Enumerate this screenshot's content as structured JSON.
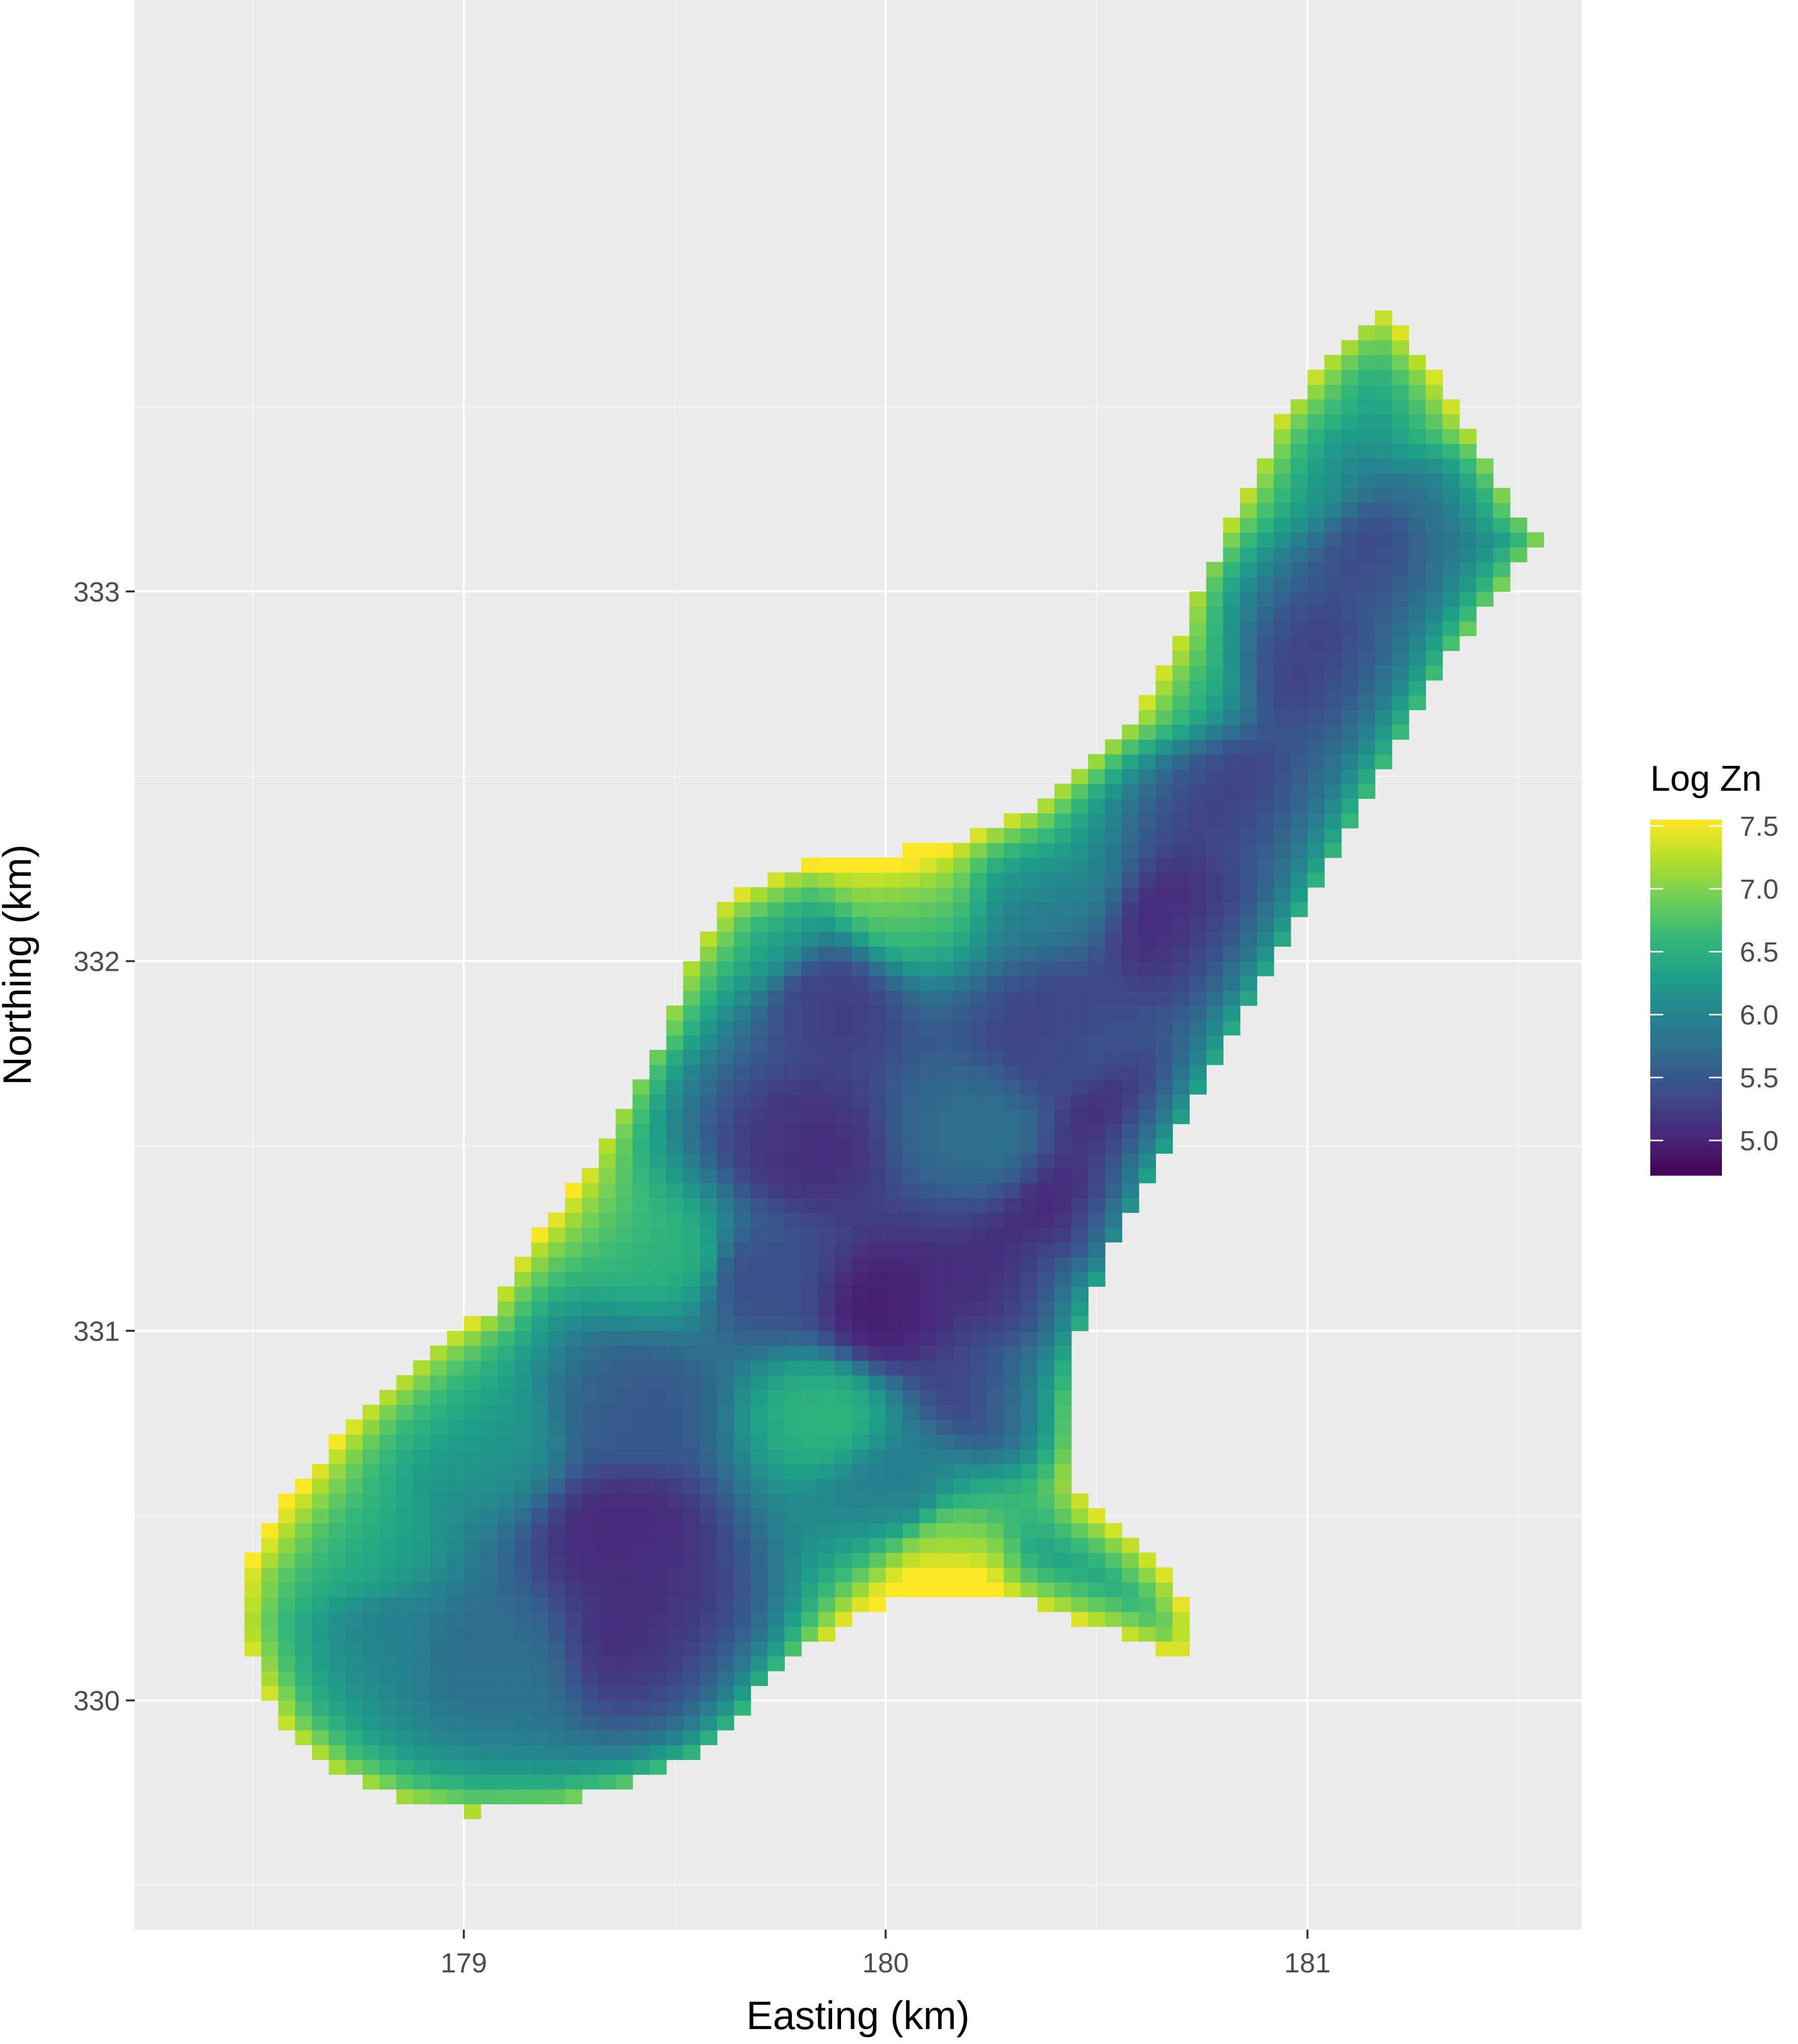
{
  "chart_data": {
    "type": "heatmap",
    "title": "",
    "xlabel": "Easting (km)",
    "ylabel": "Northing (km)",
    "xlim": [
      178.22,
      181.65
    ],
    "ylim": [
      329.38,
      334.6
    ],
    "x_ticks": [
      {
        "value": 179,
        "label": "179"
      },
      {
        "value": 180,
        "label": "180"
      },
      {
        "value": 181,
        "label": "181"
      }
    ],
    "y_ticks": [
      {
        "value": 330,
        "label": "330"
      },
      {
        "value": 331,
        "label": "331"
      },
      {
        "value": 332,
        "label": "332"
      },
      {
        "value": 333,
        "label": "333"
      }
    ],
    "minor_x": [
      178.5,
      179.5,
      180.5,
      181.5
    ],
    "minor_y": [
      329.5,
      330.5,
      331.5,
      332.5,
      333.5
    ],
    "grid": true,
    "grid_cell_km": 0.04,
    "legend": {
      "title": "Log Zn",
      "position": "right",
      "range": [
        4.72,
        7.55
      ],
      "ticks": [
        {
          "value": 5.0,
          "label": "5.0"
        },
        {
          "value": 5.5,
          "label": "5.5"
        },
        {
          "value": 6.0,
          "label": "6.0"
        },
        {
          "value": 6.5,
          "label": "6.5"
        },
        {
          "value": 7.0,
          "label": "7.0"
        },
        {
          "value": 7.5,
          "label": "7.5"
        }
      ]
    },
    "colorscale": "viridis",
    "colors": {
      "panel": "#ebebeb",
      "grid_major": "#ffffff",
      "grid_minor": "#f5f5f5",
      "viridis": [
        "#440154",
        "#482878",
        "#3e4989",
        "#31688e",
        "#26828e",
        "#1f9e89",
        "#35b779",
        "#6ece58",
        "#b5de2b",
        "#fde725"
      ]
    },
    "region_outline": [
      [
        181.18,
        333.76
      ],
      [
        181.3,
        333.6
      ],
      [
        181.4,
        333.4
      ],
      [
        181.48,
        333.22
      ],
      [
        181.55,
        333.15
      ],
      [
        181.45,
        333.0
      ],
      [
        181.35,
        332.85
      ],
      [
        181.25,
        332.65
      ],
      [
        181.15,
        332.45
      ],
      [
        181.05,
        332.25
      ],
      [
        180.95,
        332.05
      ],
      [
        180.85,
        331.85
      ],
      [
        180.72,
        331.62
      ],
      [
        180.62,
        331.42
      ],
      [
        180.55,
        331.25
      ],
      [
        180.48,
        331.08
      ],
      [
        180.44,
        330.95
      ],
      [
        180.42,
        330.8
      ],
      [
        180.44,
        330.6
      ],
      [
        180.48,
        330.52
      ],
      [
        180.6,
        330.42
      ],
      [
        180.68,
        330.32
      ],
      [
        180.72,
        330.2
      ],
      [
        180.7,
        330.12
      ],
      [
        180.62,
        330.15
      ],
      [
        180.5,
        330.2
      ],
      [
        180.35,
        330.26
      ],
      [
        180.2,
        330.3
      ],
      [
        180.05,
        330.3
      ],
      [
        179.92,
        330.22
      ],
      [
        179.82,
        330.15
      ],
      [
        179.72,
        330.05
      ],
      [
        179.65,
        329.95
      ],
      [
        179.55,
        329.85
      ],
      [
        179.4,
        329.78
      ],
      [
        179.22,
        329.72
      ],
      [
        179.02,
        329.7
      ],
      [
        178.85,
        329.73
      ],
      [
        178.7,
        329.8
      ],
      [
        178.58,
        329.92
      ],
      [
        178.52,
        330.05
      ],
      [
        178.47,
        330.2
      ],
      [
        178.48,
        330.36
      ],
      [
        178.55,
        330.5
      ],
      [
        178.66,
        330.66
      ],
      [
        178.78,
        330.82
      ],
      [
        178.92,
        330.96
      ],
      [
        179.06,
        331.05
      ],
      [
        179.15,
        331.22
      ],
      [
        179.28,
        331.42
      ],
      [
        179.38,
        331.6
      ],
      [
        179.47,
        331.8
      ],
      [
        179.53,
        332.0
      ],
      [
        179.62,
        332.16
      ],
      [
        179.8,
        332.26
      ],
      [
        180.05,
        332.3
      ],
      [
        180.22,
        332.35
      ],
      [
        180.35,
        332.4
      ],
      [
        180.48,
        332.52
      ],
      [
        180.6,
        332.68
      ],
      [
        180.68,
        332.85
      ],
      [
        180.76,
        333.05
      ],
      [
        180.85,
        333.25
      ],
      [
        180.93,
        333.45
      ],
      [
        181.03,
        333.62
      ],
      [
        181.12,
        333.72
      ]
    ],
    "anchors": [
      {
        "x": 179.45,
        "y": 330.15,
        "value": 5.05
      },
      {
        "x": 179.38,
        "y": 330.45,
        "value": 5.05
      },
      {
        "x": 179.05,
        "y": 330.1,
        "value": 5.7
      },
      {
        "x": 178.8,
        "y": 330.15,
        "value": 5.9
      },
      {
        "x": 178.75,
        "y": 330.4,
        "value": 6.25
      },
      {
        "x": 179.05,
        "y": 330.7,
        "value": 6.1
      },
      {
        "x": 179.4,
        "y": 330.8,
        "value": 5.5
      },
      {
        "x": 179.5,
        "y": 331.2,
        "value": 6.4
      },
      {
        "x": 179.7,
        "y": 331.15,
        "value": 5.4
      },
      {
        "x": 179.85,
        "y": 330.78,
        "value": 6.5
      },
      {
        "x": 180.02,
        "y": 330.55,
        "value": 5.85
      },
      {
        "x": 180.15,
        "y": 330.42,
        "value": 6.65
      },
      {
        "x": 180.45,
        "y": 330.35,
        "value": 5.95
      },
      {
        "x": 180.25,
        "y": 330.85,
        "value": 5.2
      },
      {
        "x": 180.0,
        "y": 331.05,
        "value": 4.95
      },
      {
        "x": 180.35,
        "y": 331.1,
        "value": 4.95
      },
      {
        "x": 180.5,
        "y": 331.3,
        "value": 4.72
      },
      {
        "x": 180.6,
        "y": 331.55,
        "value": 4.8
      },
      {
        "x": 179.8,
        "y": 331.5,
        "value": 5.1
      },
      {
        "x": 180.2,
        "y": 331.55,
        "value": 5.7
      },
      {
        "x": 180.4,
        "y": 331.8,
        "value": 5.3
      },
      {
        "x": 179.85,
        "y": 331.9,
        "value": 5.2
      },
      {
        "x": 179.7,
        "y": 332.05,
        "value": 5.95
      },
      {
        "x": 180.05,
        "y": 332.15,
        "value": 6.5
      },
      {
        "x": 180.4,
        "y": 332.2,
        "value": 5.8
      },
      {
        "x": 180.7,
        "y": 332.1,
        "value": 5.0
      },
      {
        "x": 180.8,
        "y": 332.45,
        "value": 5.2
      },
      {
        "x": 180.7,
        "y": 332.75,
        "value": 6.0
      },
      {
        "x": 181.0,
        "y": 332.8,
        "value": 5.2
      },
      {
        "x": 181.15,
        "y": 333.1,
        "value": 5.3
      },
      {
        "x": 181.0,
        "y": 333.3,
        "value": 5.85
      },
      {
        "x": 181.2,
        "y": 333.5,
        "value": 6.0
      },
      {
        "x": 181.35,
        "y": 333.2,
        "value": 5.5
      }
    ]
  }
}
